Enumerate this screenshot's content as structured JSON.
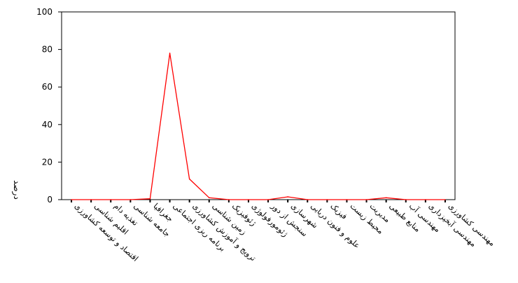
{
  "chart_data": {
    "type": "line",
    "title": "",
    "xlabel": "",
    "ylabel": "درصد",
    "ylim": [
      0,
      100
    ],
    "yticks": [
      0,
      20,
      40,
      60,
      80,
      100
    ],
    "grid": false,
    "legend": "none",
    "line_color": "#ff0000",
    "categories": [
      "اقتصاد و توسعه کشاورزی",
      "اقلیم شناسی",
      "تغذیه دام",
      "جامعه شناسی",
      "جغرافیا",
      "برنامه ریزی اجتماعی",
      "ترویج و آموزش کشاورزی",
      "زمین شناسی",
      "ژئوفیزیک",
      "ژئومورفولوژی",
      "سنجش از دور",
      "شهرسازی",
      "علوم و فنون دریایی",
      "فیزیک",
      "محیط زیست",
      "مدیریت",
      "منابع طبیعی",
      "مهندسی آب",
      "مهندسی آبخیزداری",
      "مهندسی کشاورزی"
    ],
    "values": [
      0,
      0,
      0,
      0,
      0.5,
      78,
      11,
      1,
      0,
      0,
      0,
      1.5,
      0,
      0,
      0,
      0,
      1,
      0,
      0,
      0
    ]
  }
}
